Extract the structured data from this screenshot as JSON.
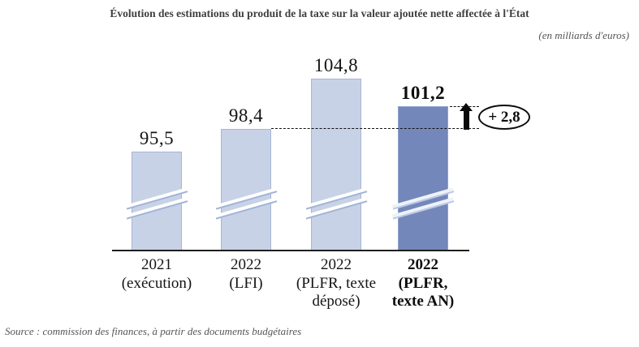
{
  "page": {
    "title": "Évolution des estimations du produit de la taxe sur la valeur ajoutée nette affectée à l'État",
    "unit_note": "(en milliards d'euros)",
    "source": "Source : commission des finances, à partir des documents budgétaires"
  },
  "chart_data": {
    "type": "bar",
    "title": "Évolution des estimations du produit de la taxe sur la valeur ajoutée nette affectée à l'État",
    "unit": "milliards d'euros",
    "categories": [
      "2021 (exécution)",
      "2022 (LFI)",
      "2022 (PLFR, texte déposé)",
      "2022 (PLFR, texte AN)"
    ],
    "category_lines": [
      [
        "2021",
        "(exécution)"
      ],
      [
        "2022",
        "(LFI)"
      ],
      [
        "2022",
        "(PLFR, texte",
        "déposé)"
      ],
      [
        "2022",
        "(PLFR,",
        "texte AN)"
      ]
    ],
    "values": [
      95.5,
      98.4,
      104.8,
      101.2
    ],
    "value_labels": [
      "95,5",
      "98,4",
      "104,8",
      "101,2"
    ],
    "highlighted_index": 3,
    "axis_break": true,
    "legend": "none",
    "annotation": {
      "text": "+ 2,8",
      "delta": 2.8,
      "from_value": 98.4,
      "to_value": 101.2,
      "note": "dashed reference lines from 98,4 (LFI 2022) up to 101,2 (PLFR texte AN) with upward arrow"
    },
    "colors": {
      "bar_light": "#c8d2e6",
      "bar_light_border": "#a6b6d6",
      "bar_dark": "#7387bb",
      "bar_dark_border": "#91a4cb",
      "axis": "#1f1f1f",
      "dashed_line": "#111111",
      "arrow": "#0a0a0a"
    }
  }
}
